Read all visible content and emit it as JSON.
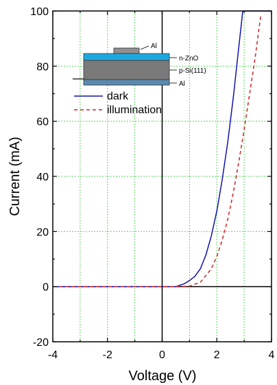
{
  "chart_data": {
    "type": "line",
    "xlabel": "Voltage (V)",
    "ylabel": "Current (mA)",
    "xlim": [
      -4,
      4
    ],
    "ylim": [
      -20,
      100
    ],
    "xticks": [
      "-4",
      "-2",
      "0",
      "2",
      "4"
    ],
    "yticks": [
      "-20",
      "0",
      "20",
      "40",
      "60",
      "80",
      "100"
    ],
    "grid": true,
    "legend_position": "upper-left",
    "series": [
      {
        "name": "dark",
        "style": "solid",
        "color": "#1010b0",
        "x": [
          -4,
          0.5,
          0.8,
          1.0,
          1.2,
          1.4,
          1.6,
          1.8,
          2.0,
          2.2,
          2.4,
          2.6,
          2.8,
          2.95,
          3.2,
          3.6,
          4.0
        ],
        "y": [
          0,
          0,
          1.0,
          2.2,
          3.8,
          6.5,
          11.5,
          18.5,
          27.5,
          39.0,
          52.5,
          68.5,
          86.5,
          100,
          100,
          100,
          100
        ]
      },
      {
        "name": "illumination",
        "style": "dashed",
        "color": "#d02020",
        "x": [
          -4,
          0.5,
          1.0,
          1.4,
          1.8,
          2.0,
          2.2,
          2.4,
          2.6,
          2.8,
          3.0,
          3.2,
          3.4,
          3.6
        ],
        "y": [
          0,
          0,
          0.2,
          1.6,
          6.5,
          11.0,
          17.0,
          24.5,
          34.0,
          45.0,
          57.0,
          70.0,
          83.0,
          98.0
        ]
      }
    ],
    "inset": {
      "labels": {
        "top_contact": "Al",
        "layer1": "n-ZnO",
        "layer2": "p-Si(111)",
        "bottom_contact": "Al"
      },
      "colors": {
        "zno": "#1ea8e0",
        "si": "#7a7a7a",
        "al": "#909090",
        "al_bottom": "#5a8ab0"
      }
    }
  }
}
